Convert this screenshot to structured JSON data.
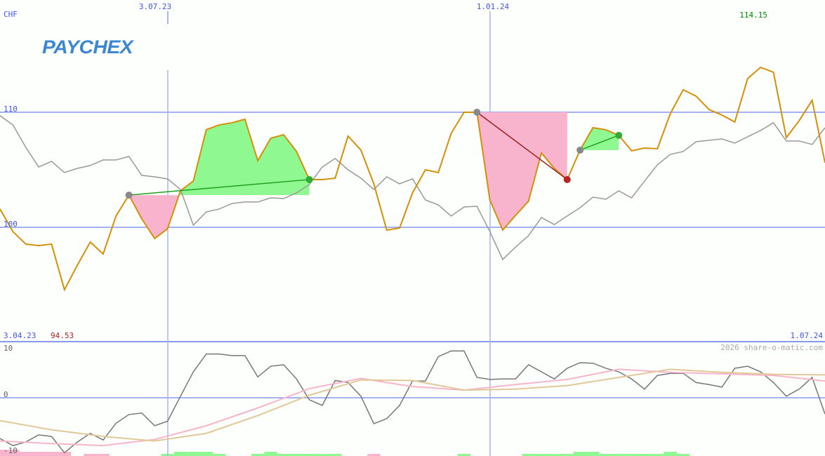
{
  "brand": {
    "logo_text": "PAYCHEX",
    "logo_color": "#3c87cf"
  },
  "chart_data": [
    {
      "type": "line",
      "currency_label": "CHF",
      "x_tick_labels": [
        "3.04.23",
        "3.07.23",
        "1.01.24",
        "1.07.24"
      ],
      "x_tick_weeks": [
        0,
        13,
        38,
        65
      ],
      "y_tick_labels": [
        "110",
        "100"
      ],
      "y_ticks": [
        110,
        100
      ],
      "max_label": "114.15",
      "min_label": "94.53",
      "watermark": "2026 share-o-matic.com",
      "colors": {
        "price": "#d4900a",
        "benchmark": "#999999",
        "grid": "#8899ee",
        "gain": "#90f890",
        "loss": "#f8b4cc",
        "max": "#008800",
        "min": "#aa2222",
        "label": "#4455ee"
      },
      "series": [
        {
          "role": "price",
          "values": [
            101.59,
            99.63,
            98.54,
            98.41,
            98.54,
            94.57,
            96.71,
            98.72,
            97.68,
            100.98,
            102.8,
            100.73,
            99.02,
            99.88,
            103.17,
            104.02,
            108.48,
            108.9,
            109.09,
            109.39,
            105.79,
            107.74,
            108.05,
            106.59,
            104.15,
            104.15,
            104.27,
            107.93,
            106.71,
            103.78,
            99.76,
            99.94,
            102.99,
            105.0,
            104.76,
            108.17,
            110.0,
            110.0,
            102.38,
            99.76,
            101.04,
            102.26,
            106.46,
            105.12,
            104.15,
            106.71,
            108.66,
            108.48,
            107.99,
            106.65,
            106.89,
            106.83,
            109.88,
            111.95,
            111.4,
            110.24,
            109.76,
            109.15,
            112.93,
            113.9,
            113.48,
            107.8,
            109.27,
            111.04,
            105.61
          ]
        },
        {
          "role": "benchmark",
          "values": [
            109.7,
            108.9,
            106.95,
            105.24,
            105.73,
            104.76,
            105.12,
            105.37,
            105.85,
            105.85,
            106.16,
            104.51,
            104.39,
            104.21,
            103.29,
            100.18,
            101.34,
            101.59,
            102.07,
            102.2,
            102.2,
            102.56,
            102.5,
            102.99,
            103.72,
            105.24,
            105.98,
            105.0,
            104.27,
            103.29,
            104.39,
            103.78,
            104.21,
            102.38,
            101.95,
            100.98,
            101.77,
            101.83,
            99.63,
            97.2,
            98.29,
            99.27,
            100.85,
            100.24,
            100.98,
            101.71,
            102.62,
            102.44,
            103.17,
            102.56,
            104.02,
            105.43,
            106.34,
            106.59,
            107.44,
            107.56,
            107.68,
            107.32,
            107.87,
            108.41,
            109.09,
            107.5,
            107.5,
            107.2,
            108.66
          ]
        }
      ],
      "trades": [
        {
          "entry": 10,
          "exit": 24,
          "result": "gain"
        },
        {
          "entry": 37,
          "exit": 44,
          "result": "loss"
        },
        {
          "entry": 45,
          "exit": 48,
          "result": "gain"
        }
      ],
      "ylim": [
        91.2,
        119.7
      ]
    },
    {
      "type": "line",
      "y_tick_labels": [
        "10",
        "0",
        "-10"
      ],
      "y_ticks": [
        10,
        0,
        -10
      ],
      "series": [
        {
          "role": "oscillator",
          "color": "#777777",
          "values": [
            -8.0,
            -9.4,
            -8.7,
            -7.3,
            -7.6,
            -10.8,
            -8.7,
            -7.0,
            -8.3,
            -5.0,
            -3.3,
            -3.0,
            -5.5,
            -4.6,
            0.3,
            5.1,
            8.6,
            8.6,
            8.3,
            8.3,
            4.1,
            6.2,
            6.5,
            3.7,
            -0.4,
            -1.5,
            3.4,
            3.0,
            0.3,
            -5.1,
            -4.1,
            -1.5,
            3.3,
            3.3,
            8.1,
            9.2,
            9.2,
            4.0,
            3.6,
            3.7,
            3.7,
            6.5,
            5.1,
            3.7,
            5.8,
            6.9,
            6.8,
            5.8,
            5.1,
            3.7,
            1.7,
            4.4,
            4.8,
            4.8,
            3.0,
            2.6,
            2.1,
            5.8,
            6.2,
            5.1,
            3.0,
            0.3,
            1.7,
            4.0,
            -3.2
          ]
        },
        {
          "role": "fast-average",
          "color": "#f8b4cc",
          "step_weeks": 4,
          "values": [
            -8.5,
            -9.0,
            -9.4,
            -8.2,
            -5.5,
            -2.0,
            1.8,
            3.8,
            2.2,
            1.5,
            2.6,
            3.6,
            5.6,
            5.0,
            4.7,
            4.4,
            3.3
          ]
        },
        {
          "role": "slow-average",
          "color": "#e0c898",
          "step_weeks": 4,
          "values": [
            -4.5,
            -6.3,
            -7.6,
            -8.5,
            -7.0,
            -3.5,
            0.5,
            3.5,
            3.4,
            1.5,
            1.7,
            2.4,
            4.0,
            5.6,
            5.0,
            4.6,
            4.5
          ]
        }
      ],
      "histogram": [
        -3,
        -3,
        -2,
        -2,
        -2,
        -2,
        0,
        -1,
        -1,
        0,
        0,
        0,
        0,
        1,
        2,
        2,
        2,
        1,
        0,
        0,
        1,
        2,
        1,
        1,
        1,
        1,
        1,
        0,
        0,
        -1,
        0,
        0,
        0,
        0,
        0,
        0,
        1,
        0,
        0,
        0,
        0,
        1,
        1,
        1,
        1,
        2,
        2,
        1,
        1,
        1,
        1,
        1,
        2,
        1,
        0,
        0,
        0,
        0,
        0,
        0,
        0,
        0,
        0,
        0,
        0
      ],
      "ylim": [
        -11.3,
        10.3
      ]
    }
  ]
}
